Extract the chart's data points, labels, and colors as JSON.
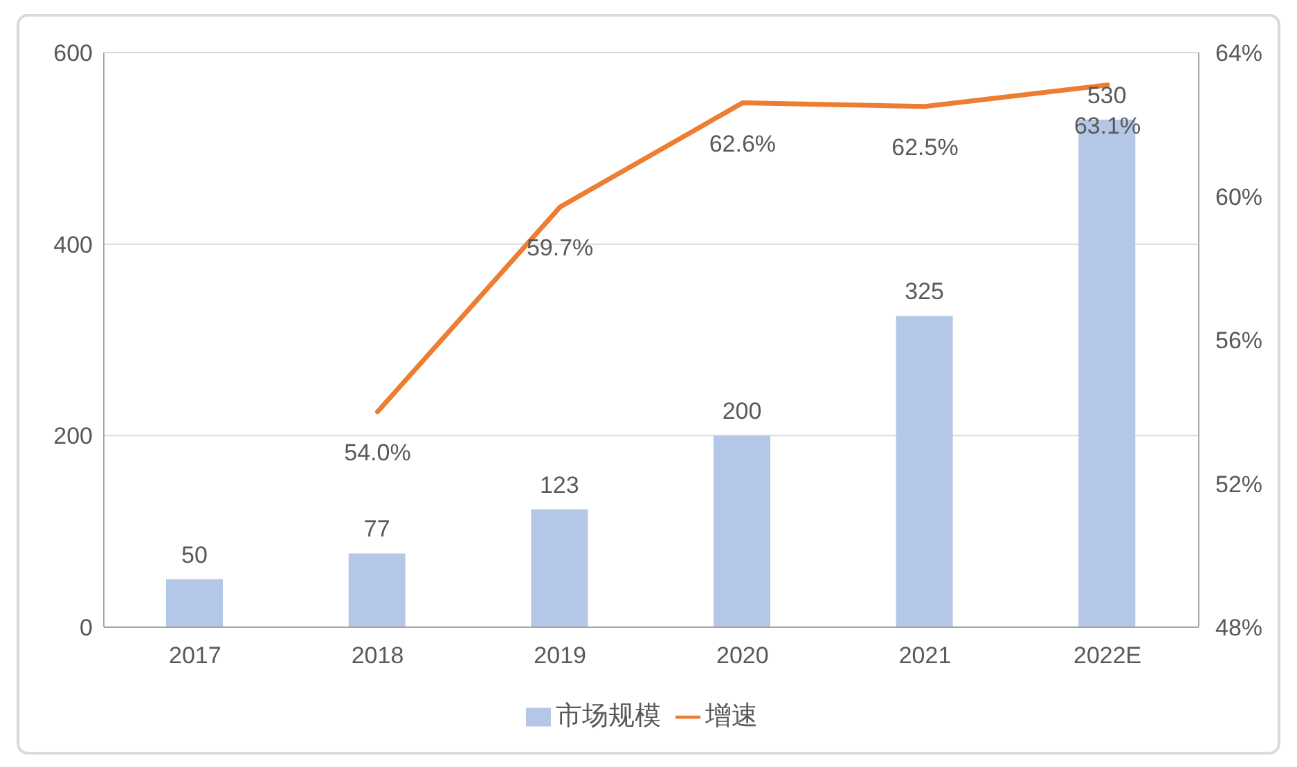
{
  "chart_data": {
    "type": "bar",
    "categories": [
      "2017",
      "2018",
      "2019",
      "2020",
      "2021",
      "2022E"
    ],
    "series": [
      {
        "name": "市场规模",
        "color": "#b4c7e7",
        "values": [
          50,
          77,
          123,
          200,
          325,
          530
        ],
        "value_labels": [
          "50",
          "77",
          "123",
          "200",
          "325",
          "530"
        ]
      },
      {
        "name": "增速",
        "type": "line",
        "axis": "y2",
        "color": "#ed7d31",
        "values": [
          null,
          54.0,
          59.7,
          62.6,
          62.5,
          63.1
        ],
        "value_labels": [
          null,
          "54.0%",
          "59.7%",
          "62.6%",
          "62.5%",
          "63.1%"
        ]
      }
    ],
    "ylim": [
      0,
      600
    ],
    "yticks": [
      0,
      200,
      400,
      600
    ],
    "y2lim": [
      48,
      64
    ],
    "y2ticks": [
      {
        "value": 48,
        "label": "48%"
      },
      {
        "value": 52,
        "label": "52%"
      },
      {
        "value": 56,
        "label": "56%"
      },
      {
        "value": 60,
        "label": "60%"
      },
      {
        "value": 64,
        "label": "64%"
      }
    ],
    "grid": "y",
    "legend": "bottom"
  }
}
